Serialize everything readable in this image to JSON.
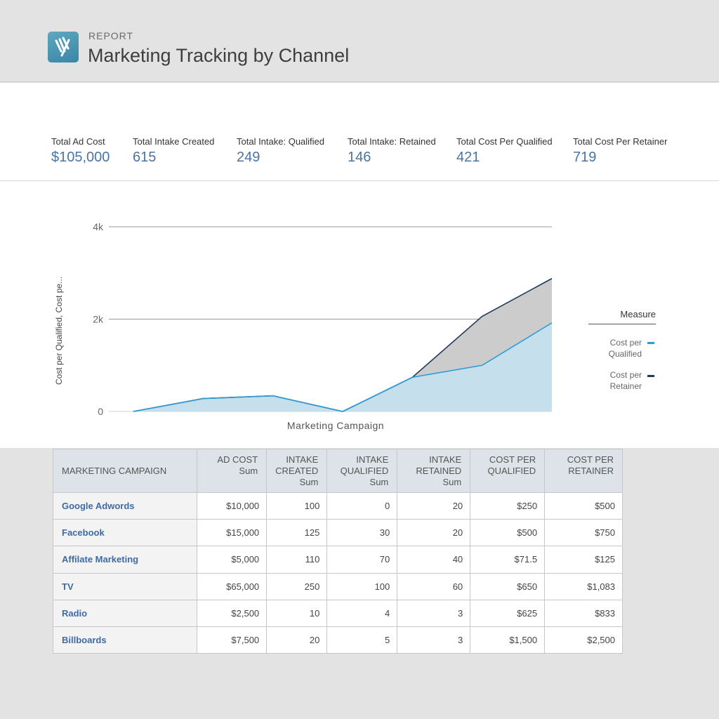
{
  "header": {
    "label": "REPORT",
    "title": "Marketing Tracking by Channel",
    "logo_icon": "brand-logo-icon"
  },
  "kpis": [
    {
      "label": "Total Ad Cost",
      "value": "$105,000"
    },
    {
      "label": "Total Intake Created",
      "value": "615"
    },
    {
      "label": "Total Intake: Qualified",
      "value": "249"
    },
    {
      "label": "Total Intake: Retained",
      "value": "146"
    },
    {
      "label": "Total Cost Per Qualified",
      "value": "421"
    },
    {
      "label": "Total Cost Per Retainer",
      "value": "719"
    }
  ],
  "legend": {
    "title": "Measure",
    "items": [
      {
        "label_line1": "Cost per",
        "label_line2": "Qualified",
        "color": "#2e9bd6"
      },
      {
        "label_line1": "Cost per",
        "label_line2": "Retainer",
        "color": "#1f3a5a"
      }
    ]
  },
  "chart_data": {
    "type": "area",
    "title": "",
    "xlabel": "Marketing Campaign",
    "ylabel": "Cost per Qualified, Cost pe...",
    "ylim": [
      0,
      4000
    ],
    "yticks": [
      0,
      2000,
      4000
    ],
    "ytick_labels": [
      "0",
      "2k",
      "4k"
    ],
    "grid": true,
    "points": 7,
    "series": [
      {
        "name": "Cost per Retainer",
        "color": "#1f3a5a",
        "fill": "#cccccc",
        "values": [
          0,
          280,
          340,
          0,
          740,
          2060,
          2880
        ]
      },
      {
        "name": "Cost per Qualified",
        "color": "#2e9bd6",
        "fill": "#c6dfec",
        "values": [
          0,
          280,
          340,
          0,
          740,
          1000,
          1920
        ]
      }
    ]
  },
  "table": {
    "headers": [
      {
        "line1": "MARKETING CAMPAIGN",
        "line2": "",
        "line3": ""
      },
      {
        "line1": "AD COST",
        "line2": "Sum",
        "line3": ""
      },
      {
        "line1": "INTAKE",
        "line2": "CREATED",
        "line3": "Sum"
      },
      {
        "line1": "INTAKE",
        "line2": "QUALIFIED",
        "line3": "Sum"
      },
      {
        "line1": "INTAKE",
        "line2": "RETAINED",
        "line3": "Sum"
      },
      {
        "line1": "COST PER",
        "line2": "QUALIFIED",
        "line3": ""
      },
      {
        "line1": "COST PER",
        "line2": "RETAINER",
        "line3": ""
      }
    ],
    "rows": [
      [
        "Google Adwords",
        "$10,000",
        "100",
        "0",
        "20",
        "$250",
        "$500"
      ],
      [
        "Facebook",
        "$15,000",
        "125",
        "30",
        "20",
        "$500",
        "$750"
      ],
      [
        "Affilate Marketing",
        "$5,000",
        "110",
        "70",
        "40",
        "$71.5",
        "$125"
      ],
      [
        "TV",
        "$65,000",
        "250",
        "100",
        "60",
        "$650",
        "$1,083"
      ],
      [
        "Radio",
        "$2,500",
        "10",
        "4",
        "3",
        "$625",
        "$833"
      ],
      [
        "Billboards",
        "$7,500",
        "20",
        "5",
        "3",
        "$1,500",
        "$2,500"
      ]
    ]
  }
}
